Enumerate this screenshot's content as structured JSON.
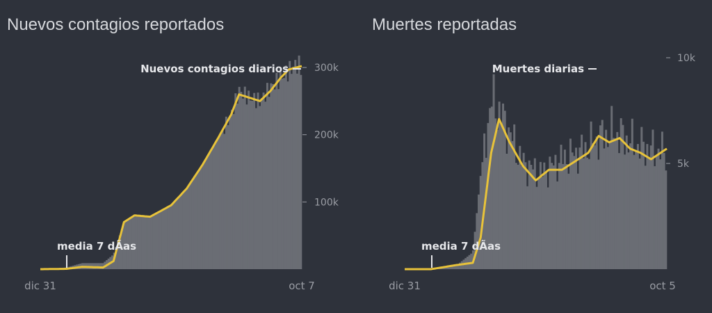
{
  "colors": {
    "bg": "#2e323b",
    "bars": "#6a6d74",
    "line": "#e8c33a",
    "text": "#d6d8dc",
    "muted": "#9a9da4"
  },
  "chart_data": [
    {
      "type": "bar",
      "title": "Nuevos contagios reportados",
      "series_label": "Nuevos contagios diarios",
      "avg_label": "media 7 dÃas",
      "x_start_label": "dic 31",
      "x_end_label": "oct 7",
      "yticks": [
        100000,
        200000,
        300000
      ],
      "ytick_labels": [
        "100k",
        "200k",
        "300k"
      ],
      "ylim": [
        0,
        330000
      ],
      "bars_top_points": [
        [
          0,
          0.0
        ],
        [
          0.1,
          2500
        ],
        [
          0.16,
          9000
        ],
        [
          0.24,
          9000
        ],
        [
          0.28,
          22000
        ],
        [
          0.32,
          70000
        ],
        [
          0.36,
          80000
        ],
        [
          0.42,
          78000
        ],
        [
          0.5,
          95000
        ],
        [
          0.56,
          120000
        ],
        [
          0.62,
          155000
        ],
        [
          0.68,
          195000
        ],
        [
          0.73,
          230000
        ],
        [
          0.76,
          265000
        ],
        [
          0.8,
          255000
        ],
        [
          0.84,
          250000
        ],
        [
          0.88,
          270000
        ],
        [
          0.92,
          285000
        ],
        [
          0.95,
          295000
        ],
        [
          0.98,
          305000
        ],
        [
          1,
          300000
        ]
      ],
      "avg_points": [
        [
          0,
          0.0
        ],
        [
          0.1,
          500
        ],
        [
          0.16,
          3500
        ],
        [
          0.24,
          2500
        ],
        [
          0.28,
          12000
        ],
        [
          0.32,
          70000
        ],
        [
          0.36,
          80000
        ],
        [
          0.42,
          78000
        ],
        [
          0.5,
          95000
        ],
        [
          0.56,
          120000
        ],
        [
          0.62,
          155000
        ],
        [
          0.68,
          195000
        ],
        [
          0.73,
          230000
        ],
        [
          0.76,
          260000
        ],
        [
          0.8,
          255000
        ],
        [
          0.84,
          250000
        ],
        [
          0.88,
          265000
        ],
        [
          0.92,
          285000
        ],
        [
          0.95,
          297000
        ],
        [
          0.98,
          300000
        ],
        [
          1,
          302000
        ]
      ]
    },
    {
      "type": "bar",
      "title": "Muertes reportadas",
      "series_label": "Muertes diarias",
      "avg_label": "media 7 dÃas",
      "x_start_label": "dic 31",
      "x_end_label": "oct 5",
      "yticks": [
        5000,
        10000
      ],
      "ytick_labels": [
        "5k",
        "10k"
      ],
      "ylim": [
        0,
        10000
      ],
      "bars_top_points": [
        [
          0,
          0.0
        ],
        [
          0.1,
          0.0
        ],
        [
          0.2,
          200
        ],
        [
          0.26,
          800
        ],
        [
          0.29,
          4500
        ],
        [
          0.33,
          8000
        ],
        [
          0.38,
          7000
        ],
        [
          0.45,
          5000
        ],
        [
          0.52,
          4500
        ],
        [
          0.6,
          5200
        ],
        [
          0.68,
          5600
        ],
        [
          0.74,
          6200
        ],
        [
          0.8,
          6500
        ],
        [
          0.86,
          6000
        ],
        [
          0.92,
          5700
        ],
        [
          1,
          5500
        ]
      ],
      "avg_points": [
        [
          0,
          0.0
        ],
        [
          0.1,
          0.0
        ],
        [
          0.2,
          200
        ],
        [
          0.26,
          300
        ],
        [
          0.29,
          1500
        ],
        [
          0.33,
          5500
        ],
        [
          0.36,
          7100
        ],
        [
          0.4,
          6000
        ],
        [
          0.45,
          4900
        ],
        [
          0.5,
          4200
        ],
        [
          0.55,
          4700
        ],
        [
          0.6,
          4700
        ],
        [
          0.65,
          5100
        ],
        [
          0.7,
          5500
        ],
        [
          0.74,
          6300
        ],
        [
          0.78,
          6000
        ],
        [
          0.82,
          6200
        ],
        [
          0.86,
          5700
        ],
        [
          0.9,
          5500
        ],
        [
          0.94,
          5200
        ],
        [
          1,
          5700
        ]
      ]
    }
  ]
}
